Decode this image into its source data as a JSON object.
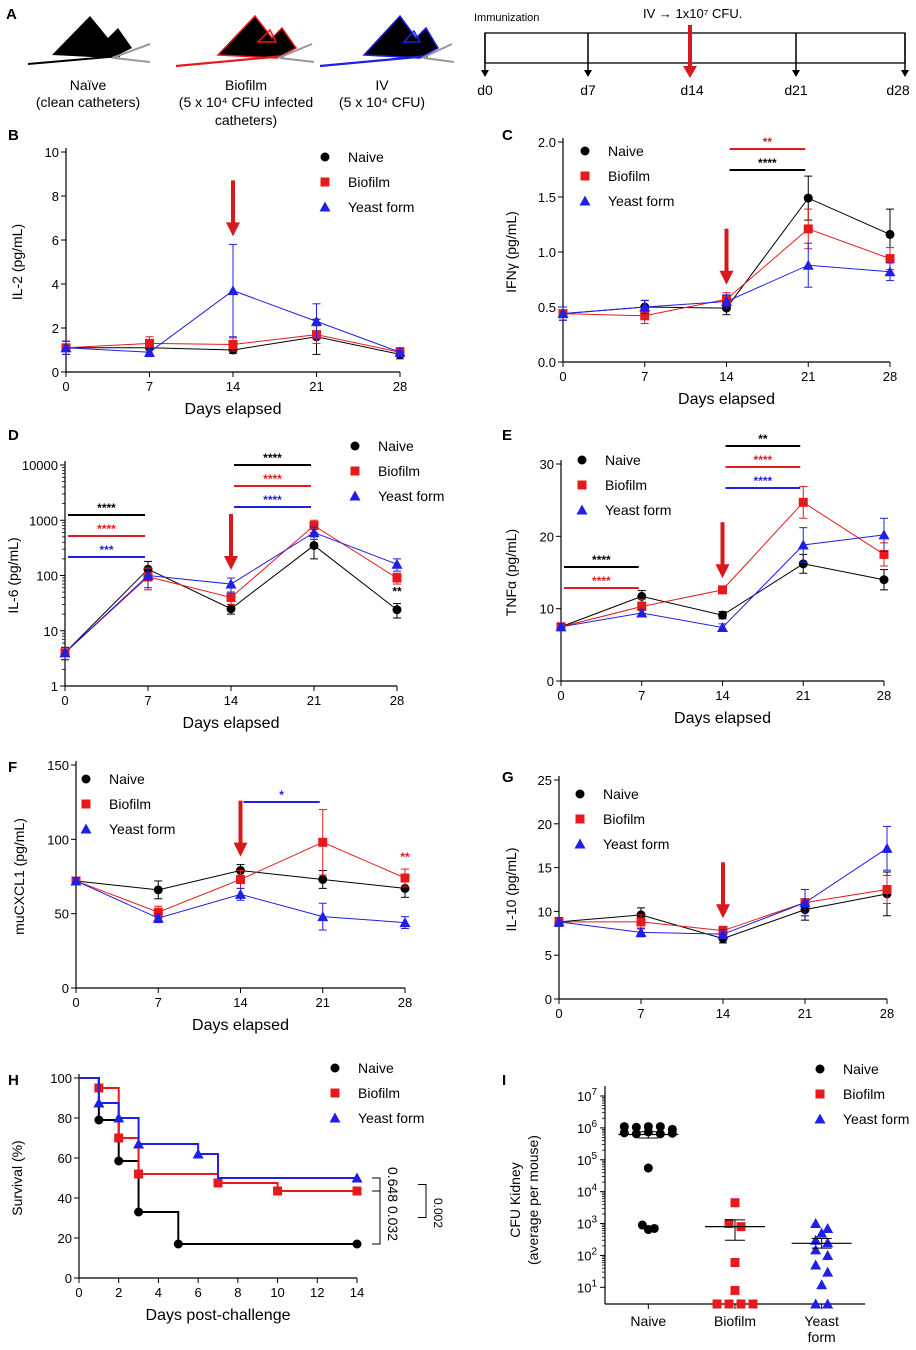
{
  "colors": {
    "naive": "#000000",
    "biofilm": "#e41a1c",
    "yeast": "#1f1fe6",
    "arrow": "#d7191c"
  },
  "legend": {
    "naive": "Naive",
    "biofilm": "Biofilm",
    "yeast": "Yeast form"
  },
  "panelA": {
    "label": "A",
    "catheters": [
      {
        "name": "Naïve",
        "desc": [
          "(clean catheters)"
        ]
      },
      {
        "name": "Biofilm",
        "desc": [
          "(5 x 10⁴ CFU infected",
          "catheters)"
        ]
      },
      {
        "name": "IV",
        "desc": [
          "(5 x 10⁴ CFU)"
        ]
      }
    ],
    "timeline": {
      "start_label": "Immunization",
      "event_label": "IV → 1x10⁷ CFU.",
      "days": [
        "d0",
        "d7",
        "d14",
        "d21",
        "d28"
      ],
      "event_day": "d14"
    }
  },
  "chart_data": [
    {
      "id": "B",
      "type": "line",
      "ylabel": "IL-2 (pg/mL)",
      "xlabel": "Days elapsed",
      "ylim": [
        0,
        10
      ],
      "yticks": [
        0,
        2,
        4,
        6,
        8,
        10
      ],
      "x": [
        0,
        7,
        14,
        21,
        28
      ],
      "challenge_day": 14,
      "series": [
        {
          "name": "Naive",
          "values": [
            1.1,
            1.1,
            1.0,
            1.6,
            0.8
          ],
          "err": [
            0.3,
            0.3,
            0.15,
            0.8,
            0.2
          ]
        },
        {
          "name": "Biofilm",
          "values": [
            1.1,
            1.3,
            1.25,
            1.7,
            0.9
          ],
          "err": [
            0.3,
            0.3,
            0.3,
            0.4,
            0.2
          ]
        },
        {
          "name": "Yeast form",
          "values": [
            1.1,
            0.9,
            3.7,
            2.3,
            0.9
          ],
          "err": [
            0.3,
            0.2,
            2.1,
            0.8,
            0.2
          ]
        }
      ],
      "sig": []
    },
    {
      "id": "C",
      "type": "line",
      "ylabel": "IFNγ (pg/mL)",
      "xlabel": "Days elapsed",
      "ylim": [
        0,
        2
      ],
      "yticks": [
        0,
        0.5,
        1,
        1.5,
        2
      ],
      "ytick_labels": [
        "0.0",
        "0.5",
        "1.0",
        "1.5",
        "2.0"
      ],
      "x": [
        0,
        7,
        14,
        21,
        28
      ],
      "challenge_day": 14,
      "series": [
        {
          "name": "Naive",
          "values": [
            0.44,
            0.5,
            0.49,
            1.49,
            1.16
          ],
          "err": [
            0.06,
            0.06,
            0.06,
            0.2,
            0.23
          ]
        },
        {
          "name": "Biofilm",
          "values": [
            0.44,
            0.42,
            0.57,
            1.21,
            0.94
          ],
          "err": [
            0.06,
            0.07,
            0.06,
            0.18,
            0.1
          ]
        },
        {
          "name": "Yeast form",
          "values": [
            0.44,
            0.5,
            0.55,
            0.88,
            0.82
          ],
          "err": [
            0.06,
            0.06,
            0.06,
            0.2,
            0.08
          ]
        }
      ],
      "sig": [
        {
          "x1": 14,
          "x2": 21,
          "text": "**",
          "color": "biofilm"
        },
        {
          "x1": 14,
          "x2": 21,
          "text": "****",
          "color": "naive"
        }
      ]
    },
    {
      "id": "D",
      "type": "line",
      "scale": "log",
      "ylabel": "IL-6 (pg/mL)",
      "xlabel": "Days elapsed",
      "ylim": [
        1,
        10000
      ],
      "yticks": [
        1,
        10,
        100,
        1000,
        10000
      ],
      "x": [
        0,
        7,
        14,
        21,
        28
      ],
      "challenge_day": 14,
      "series": [
        {
          "name": "Naive",
          "values": [
            4,
            130,
            25,
            350,
            24
          ],
          "err": [
            1,
            50,
            5,
            150,
            7
          ]
        },
        {
          "name": "Biofilm",
          "values": [
            4,
            95,
            40,
            800,
            90
          ],
          "err": [
            1,
            40,
            10,
            200,
            20
          ]
        },
        {
          "name": "Yeast form",
          "values": [
            4,
            100,
            70,
            600,
            160
          ],
          "err": [
            1,
            40,
            20,
            150,
            40
          ]
        }
      ],
      "sig": [
        {
          "x1": 0,
          "x2": 7,
          "text": "****",
          "color": "naive"
        },
        {
          "x1": 0,
          "x2": 7,
          "text": "****",
          "color": "biofilm"
        },
        {
          "x1": 0,
          "x2": 7,
          "text": "***",
          "color": "yeast"
        },
        {
          "x1": 14,
          "x2": 21,
          "text": "****",
          "color": "naive"
        },
        {
          "x1": 14,
          "x2": 21,
          "text": "****",
          "color": "biofilm"
        },
        {
          "x1": 14,
          "x2": 21,
          "text": "****",
          "color": "yeast"
        }
      ],
      "point_stars": [
        {
          "x": 28,
          "text": "**",
          "color": "naive"
        }
      ]
    },
    {
      "id": "E",
      "type": "line",
      "ylabel": "TNFα (pg/mL)",
      "xlabel": "Days elapsed",
      "ylim": [
        0,
        30
      ],
      "yticks": [
        0,
        10,
        20,
        30
      ],
      "x": [
        0,
        7,
        14,
        21,
        28
      ],
      "challenge_day": 14,
      "series": [
        {
          "name": "Naive",
          "values": [
            7.5,
            11.7,
            9.1,
            16.2,
            14.0
          ],
          "err": [
            0.4,
            0.8,
            0.5,
            1.3,
            1.4
          ]
        },
        {
          "name": "Biofilm",
          "values": [
            7.5,
            10.3,
            12.6,
            24.7,
            17.5
          ],
          "err": [
            0.4,
            1.0,
            0.5,
            2.2,
            1.6
          ]
        },
        {
          "name": "Yeast form",
          "values": [
            7.5,
            9.4,
            7.4,
            18.8,
            20.2
          ],
          "err": [
            0.4,
            0.5,
            0.5,
            2.4,
            2.3
          ]
        }
      ],
      "sig": [
        {
          "x1": 0,
          "x2": 7,
          "text": "****",
          "color": "naive"
        },
        {
          "x1": 0,
          "x2": 7,
          "text": "****",
          "color": "biofilm"
        },
        {
          "x1": 14,
          "x2": 21,
          "text": "**",
          "color": "naive"
        },
        {
          "x1": 14,
          "x2": 21,
          "text": "****",
          "color": "biofilm"
        },
        {
          "x1": 14,
          "x2": 21,
          "text": "****",
          "color": "yeast"
        }
      ]
    },
    {
      "id": "F",
      "type": "line",
      "ylabel": "muCXCL1 (pg/mL)",
      "xlabel": "Days elapsed",
      "ylim": [
        0,
        150
      ],
      "yticks": [
        0,
        50,
        100,
        150
      ],
      "x": [
        0,
        7,
        14,
        21,
        28
      ],
      "challenge_day": 14,
      "series": [
        {
          "name": "Naive",
          "values": [
            72,
            66,
            79,
            73,
            67
          ],
          "err": [
            2,
            6,
            4,
            6,
            6
          ]
        },
        {
          "name": "Biofilm",
          "values": [
            72,
            51,
            73,
            98,
            74
          ],
          "err": [
            2,
            4,
            6,
            22,
            6
          ]
        },
        {
          "name": "Yeast form",
          "values": [
            72,
            47,
            63,
            48,
            44
          ],
          "err": [
            2,
            3,
            4,
            9,
            4
          ]
        }
      ],
      "sig": [
        {
          "x1": 14,
          "x2": 21,
          "text": "*",
          "color": "yeast"
        }
      ],
      "point_stars": [
        {
          "x": 28,
          "text": "**",
          "color": "biofilm"
        }
      ]
    },
    {
      "id": "G",
      "type": "line",
      "ylabel": "IL-10 (pg/mL)",
      "xlabel": "",
      "ylim": [
        0,
        25
      ],
      "yticks": [
        0,
        5,
        10,
        15,
        20,
        25
      ],
      "x": [
        0,
        7,
        14,
        21,
        28
      ],
      "challenge_day": 14,
      "series": [
        {
          "name": "Naive",
          "values": [
            8.8,
            9.6,
            6.9,
            10.2,
            12.0
          ],
          "err": [
            0.5,
            0.8,
            0.5,
            1.2,
            2.5
          ]
        },
        {
          "name": "Biofilm",
          "values": [
            8.8,
            8.8,
            7.8,
            11.0,
            12.5
          ],
          "err": [
            0.5,
            0.8,
            0.5,
            1.5,
            1.6
          ]
        },
        {
          "name": "Yeast form",
          "values": [
            8.8,
            7.6,
            7.4,
            11.0,
            17.2
          ],
          "err": [
            0.5,
            0.5,
            0.5,
            1.5,
            2.5
          ]
        }
      ],
      "sig": []
    },
    {
      "id": "H",
      "type": "line",
      "step": true,
      "ylabel": "Survival  (%)",
      "xlabel": "Days post-challenge",
      "ylim": [
        0,
        100
      ],
      "yticks": [
        0,
        20,
        40,
        60,
        80,
        100
      ],
      "xlim": [
        0,
        14
      ],
      "xticks": [
        0,
        2,
        4,
        6,
        8,
        10,
        12,
        14
      ],
      "series": [
        {
          "name": "Naive",
          "steps": [
            [
              0,
              100
            ],
            [
              1,
              79
            ],
            [
              2,
              58.5
            ],
            [
              3,
              33
            ],
            [
              5,
              17
            ],
            [
              14,
              17
            ]
          ],
          "censor": [
            [
              1,
              79
            ],
            [
              2,
              58.5
            ],
            [
              3,
              33
            ],
            [
              5,
              17
            ],
            [
              14,
              17
            ]
          ]
        },
        {
          "name": "Biofilm",
          "steps": [
            [
              0,
              100
            ],
            [
              1,
              95
            ],
            [
              2,
              70
            ],
            [
              3,
              52
            ],
            [
              7,
              47.5
            ],
            [
              10,
              43.5
            ],
            [
              14,
              43.5
            ]
          ],
          "censor": [
            [
              1,
              95
            ],
            [
              2,
              70
            ],
            [
              3,
              52
            ],
            [
              7,
              47.5
            ],
            [
              10,
              43.5
            ],
            [
              14,
              43.5
            ]
          ]
        },
        {
          "name": "Yeast form",
          "steps": [
            [
              0,
              100
            ],
            [
              1,
              87.5
            ],
            [
              2,
              80
            ],
            [
              3,
              67
            ],
            [
              6,
              62
            ],
            [
              7,
              50
            ],
            [
              14,
              50
            ]
          ],
          "censor": [
            [
              1,
              87.5
            ],
            [
              2,
              80
            ],
            [
              3,
              67
            ],
            [
              6,
              62
            ],
            [
              14,
              50
            ]
          ]
        }
      ],
      "pvalues": [
        "0.648",
        "0.032",
        "0.002"
      ]
    },
    {
      "id": "I",
      "type": "scatter",
      "scale": "log",
      "ylabel": "CFU Kidney",
      "ylabel2": "(average per mouse)",
      "yexp": [
        1,
        2,
        3,
        4,
        5,
        6,
        7
      ],
      "ylim": [
        3,
        10000000
      ],
      "categories": [
        "Naive",
        "Biofilm",
        "Yeast form"
      ],
      "category_labels": [
        [
          "Naive"
        ],
        [
          "Biofilm"
        ],
        [
          "Yeast",
          "form"
        ]
      ],
      "groups": [
        {
          "name": "Naive",
          "mean": 620000,
          "sem_lo": 480000,
          "sem_hi": 760000,
          "values": [
            1100000,
            1050000,
            1100000,
            1100000,
            700000,
            650000,
            900000,
            750000,
            650000,
            680000,
            55000,
            900,
            650,
            700
          ]
        },
        {
          "name": "Biofilm",
          "mean": 800,
          "sem_lo": 300,
          "sem_hi": 1300,
          "values": [
            4500,
            1000,
            800,
            60,
            8,
            3,
            3,
            3,
            3
          ]
        },
        {
          "name": "Yeast form",
          "mean": 240,
          "sem_lo": 170,
          "sem_hi": 340,
          "values": [
            1000,
            700,
            500,
            300,
            250,
            150,
            100,
            50,
            30,
            12,
            3,
            3
          ]
        }
      ]
    }
  ]
}
